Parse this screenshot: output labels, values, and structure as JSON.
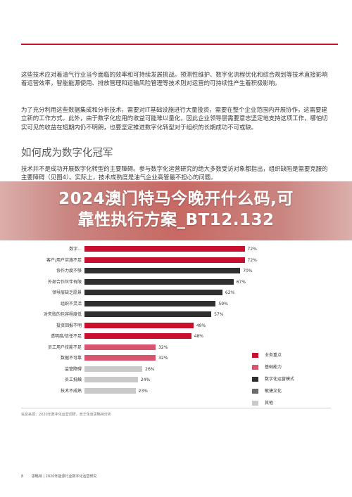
{
  "paragraphs": {
    "p1": "这些技术应对着油气行业当今面临的效率和可持续发展挑战。预测性维护、数字化流程优化和综合规划等技术直接影响着运营效率，智能能源使用、排放管理和运输风险管理等技术则对运营的可持续性产生着积极影响。",
    "p2": "为了充分利用这些数据集成和分析技术，需要对IT基础设施进行大量投资，需要在整个企业范围内开展协作，这需要建立新的工作方式。此外，由于数字化应用的收益可能难以量化，因此企业领导层需要意志坚定地支持这项工作，哪怕切实可见的收益在短期内仍不明朗，也要坚定推进数字化转型对于组织的长期成功不可或缺。",
    "heading": "如何成为数字化冠军",
    "p3": "技术并不是成功开展数字化转型的主要障碍。参与数字化运营研究的绝大多数受访对象都指出，组织缺陷是需要克服的主要障碍（见图4）。实际上，技术成熟度是油气企业高管最不担心的问题。"
  },
  "banner": {
    "line1": "2024澳门特马今晚开什么码,可",
    "line2": "靠性执行方案_BT12.132"
  },
  "chart_data": {
    "type": "bar",
    "orientation": "horizontal",
    "categories": [
      "数字...",
      "客户/用户实施不足",
      "协作力度不够",
      "外部合作伙伴有限",
      "领导层缺乏愿景",
      "组织不灵活",
      "对失败的包容程度低",
      "投资回报不明",
      "透明度/信任不足",
      "员工用户技能不足",
      "数据不可靠",
      "监管障碍",
      "员工抵触",
      "技术不成熟"
    ],
    "values": [
      72,
      72,
      70,
      67,
      62,
      59,
      57,
      49,
      48,
      32,
      32,
      26,
      24,
      23
    ],
    "colors": [
      "#c8102e",
      "#c8102e",
      "#2f2f2f",
      "#2f2f2f",
      "#2f2f2f",
      "#2f2f2f",
      "#2f2f2f",
      "#c8102e",
      "#c8102e",
      "#d9546e",
      "#d9546e",
      "#c9c9c9",
      "#c9c9c9",
      "#c9c9c9"
    ],
    "unit": "%",
    "xlim": [
      0,
      100
    ],
    "legend_placement": "right",
    "legend": [
      {
        "name": "业务重点",
        "color": "#c8102e"
      },
      {
        "name": "基础能力",
        "color": "#d9546e"
      },
      {
        "name": "数字化运营模式",
        "color": "#2f2f2f"
      },
      {
        "name": "敏捷文化",
        "color": "#6b6b6b"
      },
      {
        "name": "其他",
        "color": "#c9c9c9"
      }
    ]
  },
  "source": "信息来源：2020年数字化运营调研，普华永道思略特分析",
  "footer": {
    "page": "8",
    "text": "思略特 | 2020年能源行业数字化运营研究"
  }
}
